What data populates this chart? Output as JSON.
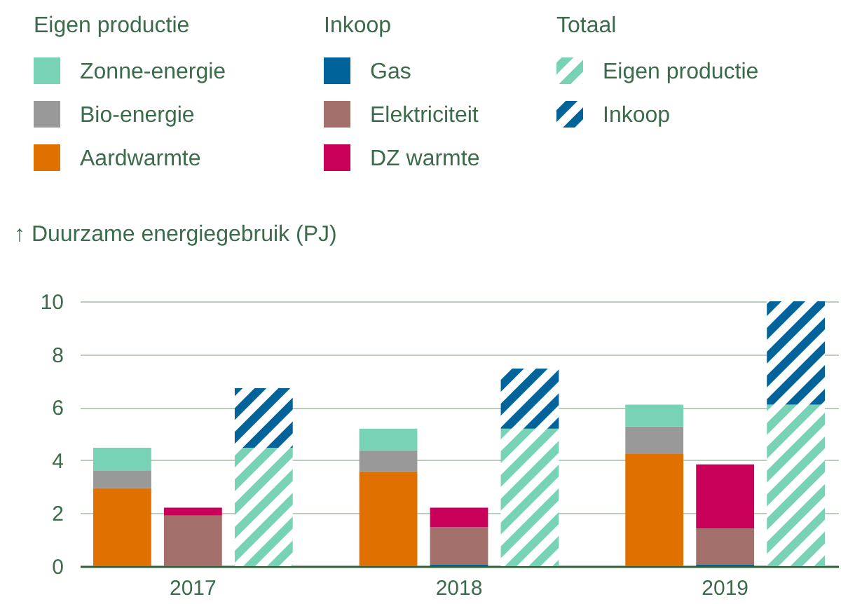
{
  "chart_data": {
    "type": "bar",
    "stacked": true,
    "ylabel": "↑ Duurzame energiegebruik (PJ)",
    "legend_title": [
      "Eigen productie",
      "Inkoop",
      "Totaal"
    ],
    "categories": [
      null,
      "2017",
      null,
      null,
      "2018",
      null,
      null,
      "2019",
      null
    ],
    "ylim": [
      0,
      10
    ],
    "yticks": [
      0,
      2,
      4,
      6,
      8,
      10
    ],
    "grid": "y",
    "legend": "top",
    "series": [
      {
        "name": "Aardwarmte",
        "color": "#e07000",
        "values": [
          2.95,
          null,
          null,
          3.58,
          null,
          null,
          4.23,
          null,
          null
        ]
      },
      {
        "name": "Bio-energie",
        "color": "#999999",
        "values": [
          0.67,
          null,
          null,
          0.79,
          null,
          null,
          1.04,
          null,
          null
        ]
      },
      {
        "name": "Zonne-energie",
        "color": "#78d2b6",
        "values": [
          0.85,
          null,
          null,
          0.82,
          null,
          null,
          0.83,
          null,
          null
        ]
      },
      {
        "name": "Gas",
        "color": "#00649b",
        "values": [
          null,
          0,
          null,
          null,
          0.05,
          null,
          null,
          0.05,
          null
        ]
      },
      {
        "name": "Elektriciteit",
        "color": "#a3706b",
        "values": [
          null,
          1.91,
          null,
          null,
          1.42,
          null,
          null,
          1.38,
          null
        ]
      },
      {
        "name": "DZ warmte",
        "color": "#c8005a",
        "values": [
          null,
          0.3,
          null,
          null,
          0.74,
          null,
          null,
          2.41,
          null
        ]
      },
      {
        "name": "Eigen productie",
        "color": "#78d2b6",
        "values": [
          null,
          null,
          4.47,
          null,
          null,
          5.19,
          null,
          null,
          6.1
        ]
      },
      {
        "name": "Inkoop",
        "color": "#00649b",
        "values": [
          null,
          null,
          2.25,
          null,
          null,
          2.27,
          null,
          null,
          3.9
        ]
      }
    ]
  }
}
